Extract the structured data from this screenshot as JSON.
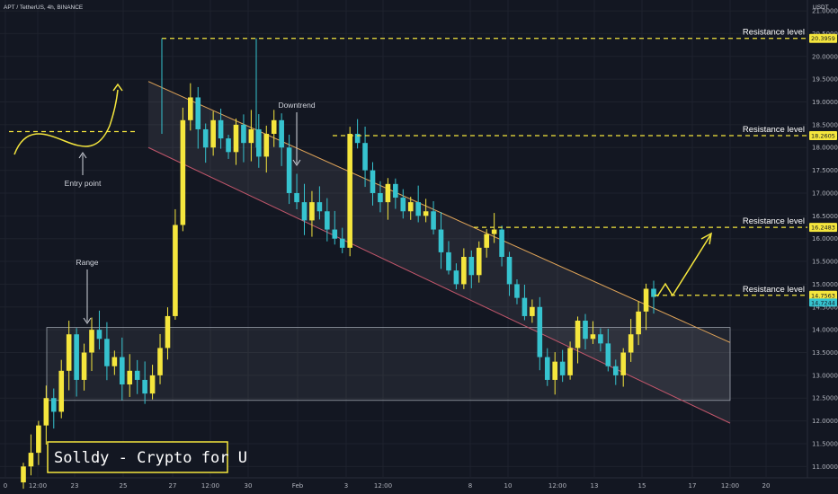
{
  "header": {
    "symbol": "APT / TetherUS, 4h, BINANCE",
    "currency": "USDT"
  },
  "chart_data": {
    "type": "candlestick",
    "bull_color": "#f5e63d",
    "bear_color": "#36c3cf",
    "ylim": [
      10.75,
      21.1
    ],
    "y_ticks": [
      "21.0000",
      "20.5000",
      "20.0000",
      "19.5000",
      "19.0000",
      "18.5000",
      "18.0000",
      "17.5000",
      "17.0000",
      "16.5000",
      "16.0000",
      "15.5000",
      "15.0000",
      "14.5000",
      "14.0000",
      "13.5000",
      "13.0000",
      "12.5000",
      "12.0000",
      "11.5000",
      "11.0000"
    ],
    "x_ticks": [
      "0",
      "12:00",
      "23",
      "25",
      "27",
      "12:00",
      "30",
      "Feb",
      "3",
      "12:00",
      "8",
      "10",
      "12:00",
      "13",
      "15",
      "17",
      "12:00",
      "20"
    ],
    "resistance_levels": [
      {
        "label": "Resistance level",
        "value": "20.3959"
      },
      {
        "label": "Resistance level",
        "value": "18.2605"
      },
      {
        "label": "Resistance level",
        "value": "16.2483"
      },
      {
        "label": "Resistance level",
        "value": "14.7563"
      }
    ],
    "last_price": "14.7563",
    "current_price_badge": "14.7244",
    "annotations": {
      "range": "Range",
      "downtrend": "Downtrend",
      "entry_point": "Entry point"
    },
    "range_box": [
      12.45,
      14.05
    ],
    "channel_upper": [
      [
        0.0,
        19.45
      ],
      [
        1.0,
        13.72
      ]
    ],
    "channel_lower": [
      [
        0.0,
        18.0
      ],
      [
        1.0,
        11.95
      ]
    ],
    "close_path": [
      11.0,
      11.3,
      11.9,
      12.5,
      12.2,
      13.1,
      13.9,
      12.9,
      13.5,
      14.0,
      13.8,
      13.2,
      13.4,
      12.8,
      13.1,
      12.9,
      12.6,
      13.0,
      13.6,
      14.3,
      16.3,
      18.6,
      19.1,
      18.4,
      18.0,
      18.6,
      18.2,
      17.9,
      18.5,
      18.1,
      18.4,
      17.8,
      18.3,
      18.6,
      18.0,
      17.0,
      16.8,
      16.4,
      16.8,
      16.6,
      16.2,
      16.0,
      15.8,
      18.3,
      18.1,
      17.5,
      17.0,
      16.8,
      17.2,
      16.9,
      16.6,
      16.8,
      16.5,
      16.6,
      16.2,
      15.7,
      15.3,
      15.0,
      15.6,
      15.2,
      15.8,
      16.1,
      16.2,
      15.6,
      15.0,
      14.7,
      14.3,
      14.5,
      13.4,
      12.9,
      13.3,
      13.0,
      13.6,
      14.2,
      13.8,
      13.9,
      13.7,
      13.2,
      13.0,
      13.5,
      13.9,
      14.4,
      14.9,
      14.72
    ]
  },
  "watermark": "Solldy - Crypto for U"
}
